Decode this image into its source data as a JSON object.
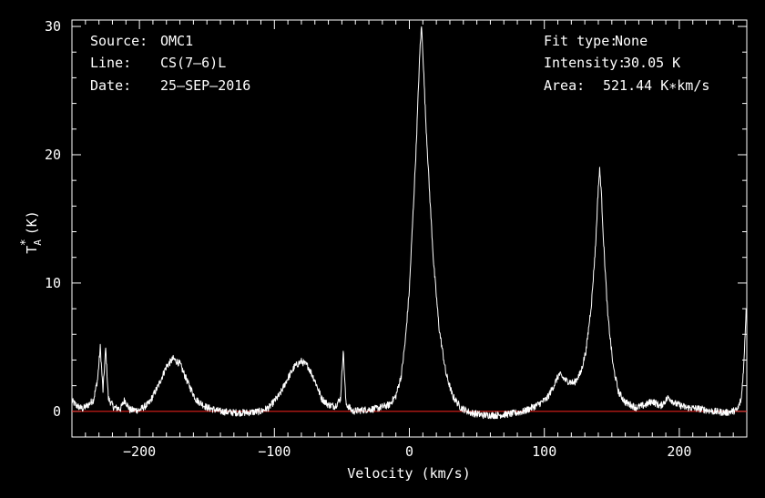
{
  "chart_data": {
    "type": "line",
    "title": "",
    "xlabel": "Velocity (km/s)",
    "ylabel": {
      "main": "T",
      "subscript": "A",
      "superscript": "*",
      "unit": "(K)"
    },
    "xlim": [
      -250,
      250
    ],
    "ylim": [
      -2,
      30.5
    ],
    "xticks": [
      -200,
      -100,
      0,
      100,
      200
    ],
    "yticks": [
      0,
      10,
      20,
      30
    ],
    "xtick_labels": [
      "−200",
      "−100",
      "0",
      "100",
      "200"
    ],
    "ytick_labels": [
      "0",
      "10",
      "20",
      "30"
    ],
    "grid": false,
    "baseline": {
      "y": 0,
      "color": "#e0201a"
    },
    "line_color": "#ffffff",
    "axes_color": "#ffffff",
    "background": "#000000",
    "info_left": [
      {
        "label": "Source:",
        "value": "OMC1"
      },
      {
        "label": "Line:",
        "value": "CS(7–6)L"
      },
      {
        "label": "Date:",
        "value": "25–SEP–2016"
      }
    ],
    "info_right": [
      {
        "label": "Fit type:",
        "value": "None"
      },
      {
        "label": "Intensity:",
        "value": "30.05 K"
      },
      {
        "label": "Area:",
        "value": "521.44 K∗km/s"
      }
    ],
    "series": [
      {
        "values": [
          [
            -250,
            0.8
          ],
          [
            -246,
            0.4
          ],
          [
            -242,
            0.2
          ],
          [
            -238,
            0.5
          ],
          [
            -234,
            0.9
          ],
          [
            -231,
            2.5
          ],
          [
            -229,
            5.0
          ],
          [
            -227,
            1.6
          ],
          [
            -225,
            4.9
          ],
          [
            -223,
            1.0
          ],
          [
            -219,
            0.3
          ],
          [
            -214,
            0.2
          ],
          [
            -211,
            0.9
          ],
          [
            -207,
            0.1
          ],
          [
            -200,
            0.1
          ],
          [
            -193,
            0.6
          ],
          [
            -186,
            2.0
          ],
          [
            -180,
            3.5
          ],
          [
            -175,
            4.1
          ],
          [
            -170,
            3.7
          ],
          [
            -164,
            2.2
          ],
          [
            -158,
            0.9
          ],
          [
            -150,
            0.3
          ],
          [
            -140,
            0.0
          ],
          [
            -130,
            -0.1
          ],
          [
            -120,
            -0.1
          ],
          [
            -110,
            0.0
          ],
          [
            -104,
            0.3
          ],
          [
            -100,
            0.8
          ],
          [
            -96,
            1.3
          ],
          [
            -91,
            2.4
          ],
          [
            -85,
            3.5
          ],
          [
            -80,
            3.9
          ],
          [
            -75,
            3.5
          ],
          [
            -70,
            2.4
          ],
          [
            -65,
            1.0
          ],
          [
            -60,
            0.5
          ],
          [
            -55,
            0.4
          ],
          [
            -51,
            1.0
          ],
          [
            -49,
            4.8
          ],
          [
            -47,
            0.6
          ],
          [
            -42,
            0.0
          ],
          [
            -35,
            0.1
          ],
          [
            -25,
            0.2
          ],
          [
            -15,
            0.5
          ],
          [
            -10,
            1.2
          ],
          [
            -6,
            2.8
          ],
          [
            -3,
            5.5
          ],
          [
            0,
            9.5
          ],
          [
            3,
            16.0
          ],
          [
            5,
            20.5
          ],
          [
            7,
            26.0
          ],
          [
            8,
            28.5
          ],
          [
            9,
            30.0
          ],
          [
            10,
            28.0
          ],
          [
            12,
            23.0
          ],
          [
            15,
            17.0
          ],
          [
            18,
            11.5
          ],
          [
            22,
            6.5
          ],
          [
            27,
            3.0
          ],
          [
            32,
            1.2
          ],
          [
            38,
            0.3
          ],
          [
            45,
            -0.1
          ],
          [
            55,
            -0.3
          ],
          [
            65,
            -0.3
          ],
          [
            75,
            -0.2
          ],
          [
            85,
            0.0
          ],
          [
            95,
            0.5
          ],
          [
            102,
            1.0
          ],
          [
            107,
            2.0
          ],
          [
            111,
            2.9
          ],
          [
            116,
            2.4
          ],
          [
            122,
            2.2
          ],
          [
            127,
            3.0
          ],
          [
            131,
            4.8
          ],
          [
            135,
            8.5
          ],
          [
            138,
            13.0
          ],
          [
            140,
            17.5
          ],
          [
            141,
            18.8
          ],
          [
            142,
            17.5
          ],
          [
            144,
            13.0
          ],
          [
            147,
            7.5
          ],
          [
            151,
            3.5
          ],
          [
            155,
            1.5
          ],
          [
            160,
            0.7
          ],
          [
            168,
            0.3
          ],
          [
            175,
            0.5
          ],
          [
            180,
            0.8
          ],
          [
            186,
            0.4
          ],
          [
            192,
            1.1
          ],
          [
            197,
            0.6
          ],
          [
            205,
            0.3
          ],
          [
            215,
            0.2
          ],
          [
            225,
            0.0
          ],
          [
            235,
            -0.1
          ],
          [
            243,
            0.1
          ],
          [
            246,
            1.0
          ],
          [
            248,
            4.0
          ],
          [
            249.5,
            8.0
          ]
        ]
      }
    ]
  }
}
